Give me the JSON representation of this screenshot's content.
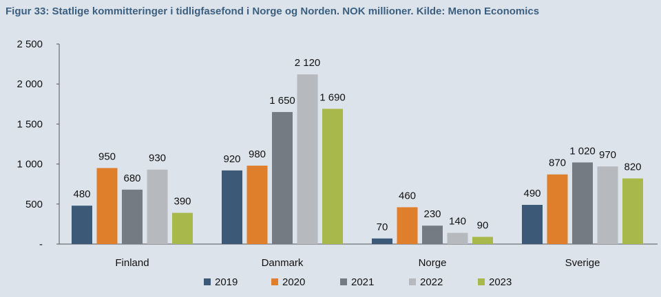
{
  "title": "Figur 33: Statlige kommitteringer i tidligfasefond i Norge og Norden. NOK millioner. Kilde: Menon Economics",
  "chart_data": {
    "type": "bar",
    "title": "Figur 33: Statlige kommitteringer i tidligfasefond i Norge og Norden. NOK millioner. Kilde: Menon Economics",
    "xlabel": "",
    "ylabel": "",
    "ylim": [
      0,
      2500
    ],
    "yticks": [
      0,
      500,
      1000,
      1500,
      2000,
      2500
    ],
    "ytick_labels": [
      "-",
      "500",
      "1 000",
      "1 500",
      "2 000",
      "2 500"
    ],
    "grid": false,
    "legend": "bottom",
    "categories": [
      "Finland",
      "Danmark",
      "Norge",
      "Sverige"
    ],
    "series": [
      {
        "name": "2019",
        "color": "#3c5a78",
        "values": [
          480,
          920,
          70,
          490
        ],
        "labels": [
          "480",
          "920",
          "70",
          "490"
        ]
      },
      {
        "name": "2020",
        "color": "#e07f2b",
        "values": [
          950,
          980,
          460,
          870
        ],
        "labels": [
          "950",
          "980",
          "460",
          "870"
        ]
      },
      {
        "name": "2021",
        "color": "#747b83",
        "values": [
          680,
          1650,
          230,
          1020
        ],
        "labels": [
          "680",
          "1 650",
          "230",
          "1 020"
        ]
      },
      {
        "name": "2022",
        "color": "#b6b9bd",
        "values": [
          930,
          2120,
          140,
          970
        ],
        "labels": [
          "930",
          "2 120",
          "140",
          "970"
        ]
      },
      {
        "name": "2023",
        "color": "#a8b84a",
        "values": [
          390,
          1690,
          90,
          820
        ],
        "labels": [
          "390",
          "1 690",
          "90",
          "820"
        ]
      }
    ]
  }
}
